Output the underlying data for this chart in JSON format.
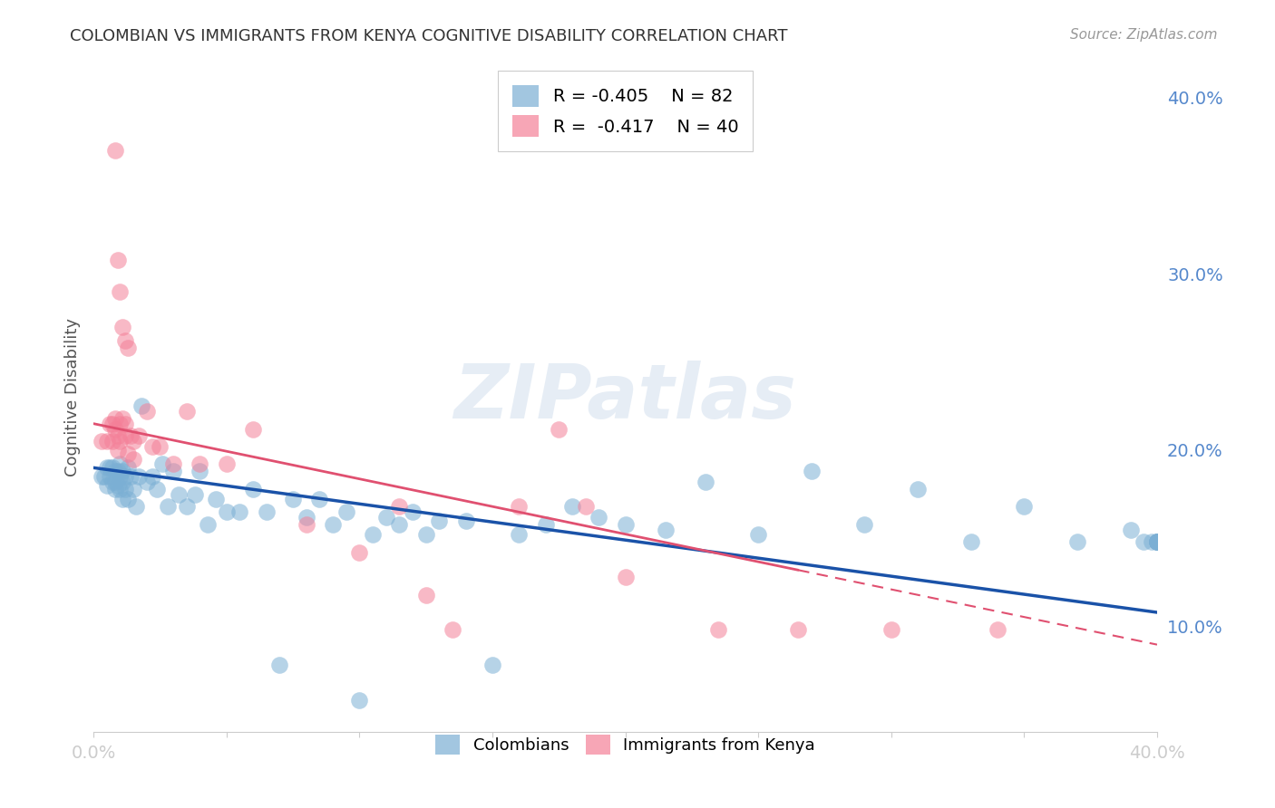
{
  "title": "COLOMBIAN VS IMMIGRANTS FROM KENYA COGNITIVE DISABILITY CORRELATION CHART",
  "source": "Source: ZipAtlas.com",
  "ylabel": "Cognitive Disability",
  "watermark": "ZIPatlas",
  "legend_blue_R": "-0.405",
  "legend_blue_N": "82",
  "legend_pink_R": "-0.417",
  "legend_pink_N": "40",
  "xmin": 0.0,
  "xmax": 0.4,
  "ymin": 0.04,
  "ymax": 0.42,
  "yticks": [
    0.1,
    0.2,
    0.3,
    0.4
  ],
  "ytick_labels": [
    "10.0%",
    "20.0%",
    "30.0%",
    "40.0%"
  ],
  "xticks": [
    0.0,
    0.05,
    0.1,
    0.15,
    0.2,
    0.25,
    0.3,
    0.35,
    0.4
  ],
  "xtick_labels": [
    "0.0%",
    "",
    "",
    "",
    "",
    "",
    "",
    "",
    "40.0%"
  ],
  "blue_color": "#7bafd4",
  "pink_color": "#f48098",
  "line_blue": "#1a52a8",
  "line_pink": "#e05070",
  "background": "#ffffff",
  "grid_color": "#cccccc",
  "title_color": "#333333",
  "axis_color": "#5588cc",
  "colombians_x": [
    0.003,
    0.004,
    0.005,
    0.005,
    0.006,
    0.006,
    0.007,
    0.007,
    0.008,
    0.008,
    0.008,
    0.009,
    0.009,
    0.01,
    0.01,
    0.01,
    0.011,
    0.011,
    0.011,
    0.012,
    0.012,
    0.013,
    0.013,
    0.014,
    0.015,
    0.016,
    0.017,
    0.018,
    0.02,
    0.022,
    0.024,
    0.026,
    0.028,
    0.03,
    0.032,
    0.035,
    0.038,
    0.04,
    0.043,
    0.046,
    0.05,
    0.055,
    0.06,
    0.065,
    0.07,
    0.075,
    0.08,
    0.085,
    0.09,
    0.095,
    0.1,
    0.105,
    0.11,
    0.115,
    0.12,
    0.125,
    0.13,
    0.14,
    0.15,
    0.16,
    0.17,
    0.18,
    0.19,
    0.2,
    0.215,
    0.23,
    0.25,
    0.27,
    0.29,
    0.31,
    0.33,
    0.35,
    0.37,
    0.39,
    0.395,
    0.398,
    0.4,
    0.4,
    0.4,
    0.4,
    0.4,
    0.4
  ],
  "colombians_y": [
    0.185,
    0.185,
    0.19,
    0.18,
    0.19,
    0.185,
    0.19,
    0.182,
    0.188,
    0.182,
    0.178,
    0.188,
    0.18,
    0.192,
    0.185,
    0.178,
    0.188,
    0.182,
    0.172,
    0.185,
    0.178,
    0.19,
    0.172,
    0.185,
    0.178,
    0.168,
    0.185,
    0.225,
    0.182,
    0.185,
    0.178,
    0.192,
    0.168,
    0.188,
    0.175,
    0.168,
    0.175,
    0.188,
    0.158,
    0.172,
    0.165,
    0.165,
    0.178,
    0.165,
    0.078,
    0.172,
    0.162,
    0.172,
    0.158,
    0.165,
    0.058,
    0.152,
    0.162,
    0.158,
    0.165,
    0.152,
    0.16,
    0.16,
    0.078,
    0.152,
    0.158,
    0.168,
    0.162,
    0.158,
    0.155,
    0.182,
    0.152,
    0.188,
    0.158,
    0.178,
    0.148,
    0.168,
    0.148,
    0.155,
    0.148,
    0.148,
    0.148,
    0.148,
    0.148,
    0.148,
    0.148,
    0.148
  ],
  "kenya_x": [
    0.003,
    0.005,
    0.006,
    0.007,
    0.007,
    0.008,
    0.008,
    0.009,
    0.009,
    0.01,
    0.01,
    0.011,
    0.012,
    0.012,
    0.013,
    0.014,
    0.015,
    0.015,
    0.017,
    0.02,
    0.022,
    0.025,
    0.03,
    0.035,
    0.04,
    0.05,
    0.06,
    0.08,
    0.1,
    0.115,
    0.125,
    0.135,
    0.16,
    0.175,
    0.185,
    0.2,
    0.235,
    0.265,
    0.3,
    0.34
  ],
  "kenya_y": [
    0.205,
    0.205,
    0.215,
    0.205,
    0.215,
    0.218,
    0.212,
    0.208,
    0.2,
    0.215,
    0.205,
    0.218,
    0.208,
    0.215,
    0.198,
    0.208,
    0.205,
    0.195,
    0.208,
    0.222,
    0.202,
    0.202,
    0.192,
    0.222,
    0.192,
    0.192,
    0.212,
    0.158,
    0.142,
    0.168,
    0.118,
    0.098,
    0.168,
    0.212,
    0.168,
    0.128,
    0.098,
    0.098,
    0.098,
    0.098
  ],
  "kenya_outliers_x": [
    0.008,
    0.009,
    0.01,
    0.011,
    0.012,
    0.013
  ],
  "kenya_outliers_y": [
    0.37,
    0.308,
    0.29,
    0.27,
    0.262,
    0.258
  ],
  "blue_line_x0": 0.0,
  "blue_line_x1": 0.4,
  "blue_line_y0": 0.19,
  "blue_line_y1": 0.108,
  "pink_line_x0": 0.0,
  "pink_line_x1": 0.265,
  "pink_line_y0": 0.215,
  "pink_line_y1": 0.132
}
